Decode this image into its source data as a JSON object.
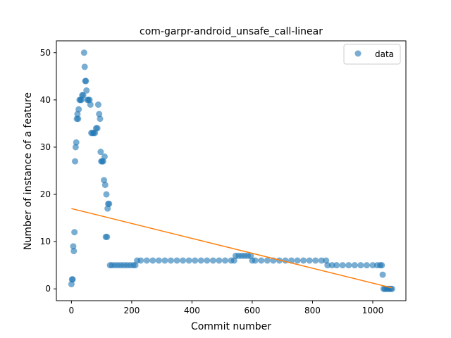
{
  "chart_data": {
    "type": "scatter",
    "title": "com-garpr-android_unsafe_call-linear",
    "xlabel": "Commit number",
    "ylabel": "Number of instance of a feature",
    "xlim": [
      -50,
      1110
    ],
    "ylim": [
      -2.5,
      52.5
    ],
    "x_ticks": [
      0,
      200,
      400,
      600,
      800,
      1000
    ],
    "y_ticks": [
      0,
      10,
      20,
      30,
      40,
      50
    ],
    "grid": false,
    "legend": {
      "placement": "top-right",
      "entries": [
        "data"
      ]
    },
    "colors": {
      "data": "#1f77b4",
      "fit": "#ff7f0e"
    },
    "series": [
      {
        "name": "data",
        "kind": "scatter",
        "points": [
          [
            0,
            1
          ],
          [
            2,
            2
          ],
          [
            4,
            2
          ],
          [
            6,
            9
          ],
          [
            8,
            8
          ],
          [
            10,
            12
          ],
          [
            12,
            27
          ],
          [
            14,
            30
          ],
          [
            16,
            31
          ],
          [
            18,
            36
          ],
          [
            20,
            37
          ],
          [
            22,
            36
          ],
          [
            24,
            38
          ],
          [
            27,
            40
          ],
          [
            30,
            40
          ],
          [
            33,
            40
          ],
          [
            36,
            41
          ],
          [
            39,
            41
          ],
          [
            42,
            50
          ],
          [
            44,
            47
          ],
          [
            46,
            44
          ],
          [
            48,
            44
          ],
          [
            50,
            42
          ],
          [
            53,
            40
          ],
          [
            56,
            40
          ],
          [
            60,
            40
          ],
          [
            63,
            39
          ],
          [
            66,
            33
          ],
          [
            70,
            33
          ],
          [
            74,
            33
          ],
          [
            78,
            33
          ],
          [
            82,
            34
          ],
          [
            86,
            34
          ],
          [
            89,
            39
          ],
          [
            92,
            37
          ],
          [
            95,
            36
          ],
          [
            97,
            29
          ],
          [
            99,
            27
          ],
          [
            102,
            27
          ],
          [
            105,
            27
          ],
          [
            108,
            23
          ],
          [
            110,
            28
          ],
          [
            112,
            22
          ],
          [
            114,
            11
          ],
          [
            116,
            20
          ],
          [
            118,
            11
          ],
          [
            120,
            17
          ],
          [
            122,
            18
          ],
          [
            125,
            18
          ],
          [
            128,
            5
          ],
          [
            135,
            5
          ],
          [
            145,
            5
          ],
          [
            155,
            5
          ],
          [
            165,
            5
          ],
          [
            175,
            5
          ],
          [
            185,
            5
          ],
          [
            195,
            5
          ],
          [
            205,
            5
          ],
          [
            212,
            5
          ],
          [
            218,
            6
          ],
          [
            230,
            6
          ],
          [
            250,
            6
          ],
          [
            270,
            6
          ],
          [
            290,
            6
          ],
          [
            310,
            6
          ],
          [
            330,
            6
          ],
          [
            350,
            6
          ],
          [
            370,
            6
          ],
          [
            390,
            6
          ],
          [
            410,
            6
          ],
          [
            430,
            6
          ],
          [
            450,
            6
          ],
          [
            470,
            6
          ],
          [
            490,
            6
          ],
          [
            510,
            6
          ],
          [
            530,
            6
          ],
          [
            540,
            6
          ],
          [
            545,
            7
          ],
          [
            555,
            7
          ],
          [
            565,
            7
          ],
          [
            575,
            7
          ],
          [
            585,
            7
          ],
          [
            595,
            7
          ],
          [
            600,
            6
          ],
          [
            610,
            6
          ],
          [
            630,
            6
          ],
          [
            650,
            6
          ],
          [
            670,
            6
          ],
          [
            690,
            6
          ],
          [
            710,
            6
          ],
          [
            730,
            6
          ],
          [
            750,
            6
          ],
          [
            770,
            6
          ],
          [
            790,
            6
          ],
          [
            810,
            6
          ],
          [
            830,
            6
          ],
          [
            845,
            6
          ],
          [
            850,
            5
          ],
          [
            865,
            5
          ],
          [
            880,
            5
          ],
          [
            900,
            5
          ],
          [
            920,
            5
          ],
          [
            940,
            5
          ],
          [
            960,
            5
          ],
          [
            980,
            5
          ],
          [
            1000,
            5
          ],
          [
            1015,
            5
          ],
          [
            1025,
            5
          ],
          [
            1030,
            5
          ],
          [
            1033,
            3
          ],
          [
            1036,
            0
          ],
          [
            1040,
            0
          ],
          [
            1045,
            0
          ],
          [
            1050,
            0
          ],
          [
            1055,
            0
          ],
          [
            1060,
            0
          ],
          [
            1064,
            0
          ]
        ]
      },
      {
        "name": "",
        "kind": "line",
        "points": [
          [
            0,
            17.0
          ],
          [
            1064,
            0.2
          ]
        ]
      }
    ]
  }
}
